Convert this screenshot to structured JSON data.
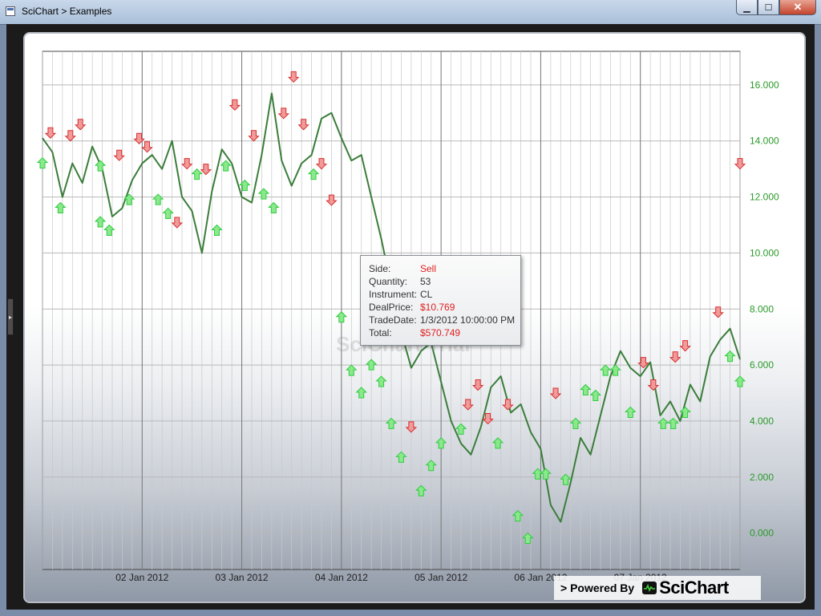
{
  "window": {
    "title": "SciChart > Examples",
    "minimize": "▁",
    "maximize": "☐",
    "close": "✕"
  },
  "colors": {
    "series": "#3a7d3a",
    "buy": "#2ecc40",
    "sell": "#d83030",
    "axis_label": "#2a9a2a"
  },
  "tooltip": {
    "side_label": "Side:",
    "side_value": "Sell",
    "quantity_label": "Quantity:",
    "quantity_value": "53",
    "instrument_label": "Instrument:",
    "instrument_value": "CL",
    "dealprice_label": "DealPrice:",
    "dealprice_value": "$10.769",
    "tradedate_label": "TradeDate:",
    "tradedate_value": "1/3/2012 10:00:00 PM",
    "total_label": "Total:",
    "total_value": "$570.749"
  },
  "watermark": "SciChart Trial",
  "powered_by": {
    "text": "> Powered By",
    "brand": "SciChart"
  },
  "chart_data": {
    "type": "line",
    "x_tick_labels": [
      "02 Jan 2012",
      "03 Jan 2012",
      "04 Jan 2012",
      "05 Jan 2012",
      "06 Jan 2012",
      "07 Jan 2012"
    ],
    "y_tick_labels": [
      "0.000",
      "2.000",
      "4.000",
      "6.000",
      "8.000",
      "10.000",
      "12.000",
      "14.000",
      "16.000"
    ],
    "ylim": [
      -1.3,
      17.2
    ],
    "xlim": [
      0.0,
      7.0
    ],
    "grid": true,
    "y_axis_side": "right",
    "series": [
      {
        "x": [
          0.0,
          0.1,
          0.2,
          0.3,
          0.4,
          0.5,
          0.6,
          0.7,
          0.8,
          0.9,
          1.0,
          1.1,
          1.2,
          1.3,
          1.4,
          1.5,
          1.6,
          1.7,
          1.8,
          1.9,
          2.0,
          2.1,
          2.2,
          2.3,
          2.4,
          2.5,
          2.6,
          2.7,
          2.8,
          2.9,
          3.0,
          3.1,
          3.2,
          3.3,
          3.4,
          3.5,
          3.6,
          3.7,
          3.8,
          3.9,
          4.0,
          4.1,
          4.2,
          4.3,
          4.4,
          4.5,
          4.6,
          4.7,
          4.8,
          4.9,
          5.0,
          5.1,
          5.2,
          5.3,
          5.4,
          5.5,
          5.6,
          5.7,
          5.8,
          5.9,
          6.0,
          6.1,
          6.2,
          6.3,
          6.4,
          6.5,
          6.6,
          6.7,
          6.8,
          6.9,
          7.0
        ],
        "y": [
          14.1,
          13.6,
          12.0,
          13.2,
          12.5,
          13.8,
          13.0,
          11.3,
          11.6,
          12.6,
          13.2,
          13.5,
          13.0,
          14.0,
          12.0,
          11.5,
          10.0,
          12.2,
          13.7,
          13.2,
          12.0,
          11.8,
          13.5,
          15.7,
          13.3,
          12.4,
          13.2,
          13.5,
          14.8,
          15.0,
          14.1,
          13.3,
          13.5,
          12.0,
          10.5,
          8.8,
          7.2,
          5.9,
          6.5,
          6.8,
          5.4,
          4.0,
          3.2,
          2.8,
          3.8,
          5.2,
          5.6,
          4.3,
          4.6,
          3.6,
          3.0,
          1.0,
          0.4,
          1.8,
          3.4,
          2.8,
          4.2,
          5.6,
          6.5,
          5.9,
          5.6,
          6.1,
          4.2,
          4.7,
          4.0,
          5.3,
          4.7,
          6.3,
          6.9,
          7.3,
          6.2
        ]
      }
    ],
    "sell_markers": [
      {
        "x": 0.08,
        "y": 14.3
      },
      {
        "x": 0.28,
        "y": 14.2
      },
      {
        "x": 0.38,
        "y": 14.6
      },
      {
        "x": 0.77,
        "y": 13.5
      },
      {
        "x": 0.97,
        "y": 14.1
      },
      {
        "x": 1.05,
        "y": 13.8
      },
      {
        "x": 1.35,
        "y": 11.1
      },
      {
        "x": 1.45,
        "y": 13.2
      },
      {
        "x": 1.64,
        "y": 13.0
      },
      {
        "x": 1.93,
        "y": 15.3
      },
      {
        "x": 2.12,
        "y": 14.2
      },
      {
        "x": 2.42,
        "y": 15.0
      },
      {
        "x": 2.52,
        "y": 16.3
      },
      {
        "x": 2.62,
        "y": 14.6
      },
      {
        "x": 2.8,
        "y": 13.2
      },
      {
        "x": 2.9,
        "y": 11.9
      },
      {
        "x": 3.7,
        "y": 3.8
      },
      {
        "x": 4.27,
        "y": 4.6
      },
      {
        "x": 4.37,
        "y": 5.3
      },
      {
        "x": 4.47,
        "y": 4.1
      },
      {
        "x": 4.67,
        "y": 4.6
      },
      {
        "x": 5.15,
        "y": 5.0
      },
      {
        "x": 6.03,
        "y": 6.1
      },
      {
        "x": 6.13,
        "y": 5.3
      },
      {
        "x": 6.35,
        "y": 6.3
      },
      {
        "x": 6.45,
        "y": 6.7
      },
      {
        "x": 6.78,
        "y": 7.9
      },
      {
        "x": 7.0,
        "y": 13.2
      }
    ],
    "buy_markers": [
      {
        "x": 0.0,
        "y": 13.2
      },
      {
        "x": 0.18,
        "y": 11.6
      },
      {
        "x": 0.58,
        "y": 13.1
      },
      {
        "x": 0.58,
        "y": 11.1
      },
      {
        "x": 0.67,
        "y": 10.8
      },
      {
        "x": 0.87,
        "y": 11.9
      },
      {
        "x": 1.16,
        "y": 11.9
      },
      {
        "x": 1.26,
        "y": 11.4
      },
      {
        "x": 1.55,
        "y": 12.8
      },
      {
        "x": 1.75,
        "y": 10.8
      },
      {
        "x": 1.84,
        "y": 13.1
      },
      {
        "x": 2.03,
        "y": 12.4
      },
      {
        "x": 2.22,
        "y": 12.1
      },
      {
        "x": 2.32,
        "y": 11.6
      },
      {
        "x": 2.72,
        "y": 12.8
      },
      {
        "x": 3.0,
        "y": 7.7
      },
      {
        "x": 3.1,
        "y": 5.8
      },
      {
        "x": 3.2,
        "y": 5.0
      },
      {
        "x": 3.3,
        "y": 6.0
      },
      {
        "x": 3.4,
        "y": 5.4
      },
      {
        "x": 3.5,
        "y": 3.9
      },
      {
        "x": 3.6,
        "y": 2.7
      },
      {
        "x": 3.8,
        "y": 1.5
      },
      {
        "x": 3.9,
        "y": 2.4
      },
      {
        "x": 4.0,
        "y": 3.2
      },
      {
        "x": 4.2,
        "y": 3.7
      },
      {
        "x": 4.57,
        "y": 3.2
      },
      {
        "x": 4.77,
        "y": 0.6
      },
      {
        "x": 4.87,
        "y": -0.2
      },
      {
        "x": 4.97,
        "y": 2.1
      },
      {
        "x": 5.05,
        "y": 2.1
      },
      {
        "x": 5.25,
        "y": 1.9
      },
      {
        "x": 5.35,
        "y": 3.9
      },
      {
        "x": 5.45,
        "y": 5.1
      },
      {
        "x": 5.55,
        "y": 4.9
      },
      {
        "x": 5.65,
        "y": 5.8
      },
      {
        "x": 5.75,
        "y": 5.8
      },
      {
        "x": 5.9,
        "y": 4.3
      },
      {
        "x": 6.23,
        "y": 3.9
      },
      {
        "x": 6.33,
        "y": 3.9
      },
      {
        "x": 6.45,
        "y": 4.3
      },
      {
        "x": 6.9,
        "y": 6.3
      },
      {
        "x": 7.0,
        "y": 5.4
      }
    ]
  }
}
